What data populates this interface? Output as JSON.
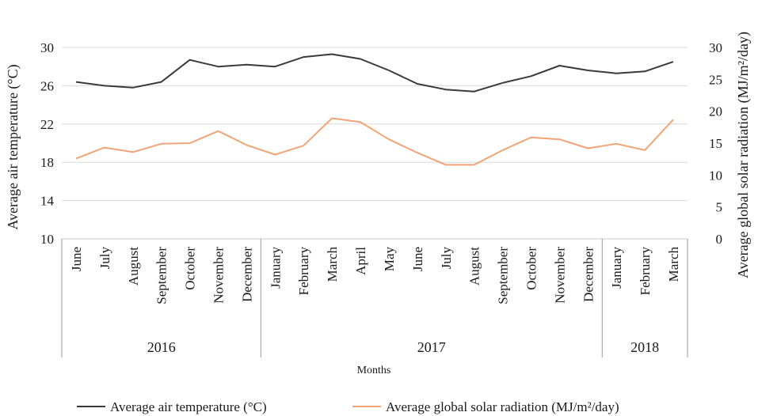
{
  "chart_data": {
    "type": "line",
    "months": [
      "June",
      "July",
      "August",
      "September",
      "October",
      "November",
      "December",
      "January",
      "February",
      "March",
      "April",
      "May",
      "June",
      "July",
      "August",
      "September",
      "October",
      "November",
      "December",
      "January",
      "February",
      "March"
    ],
    "year_groups": [
      {
        "label": "2016",
        "start": 0,
        "end": 6
      },
      {
        "label": "2017",
        "start": 7,
        "end": 18
      },
      {
        "label": "2018",
        "start": 19,
        "end": 21
      }
    ],
    "series": [
      {
        "name": "Average air temperature (°C)",
        "axis": "left",
        "color": "#3a3a3a",
        "values": [
          26.4,
          26.0,
          25.8,
          26.4,
          28.7,
          28.0,
          28.2,
          28.0,
          29.0,
          29.3,
          28.8,
          27.6,
          26.2,
          25.6,
          25.4,
          26.3,
          27.0,
          28.1,
          27.6,
          27.3,
          27.5,
          28.5
        ]
      },
      {
        "name": "Average global solar radiation (MJ/m²/day)",
        "axis": "right",
        "color": "#f2a477",
        "values": [
          12.6,
          14.3,
          13.6,
          14.9,
          15.0,
          16.9,
          14.7,
          13.2,
          14.6,
          18.9,
          18.3,
          15.6,
          13.5,
          11.6,
          11.6,
          13.9,
          15.9,
          15.6,
          14.2,
          14.9,
          13.9,
          18.7
        ]
      }
    ],
    "y_left": {
      "label": "Average air temperature (°C)",
      "min": 10,
      "max": 30,
      "ticks": [
        "10",
        "14",
        "18",
        "22",
        "26",
        "30"
      ]
    },
    "y_right": {
      "label": "Average global solar radiation (MJ/m²/day)",
      "min": 0,
      "max": 30,
      "ticks": [
        "0",
        "5",
        "10",
        "15",
        "20",
        "25",
        "30"
      ]
    },
    "xlabel": "Months",
    "grid": true,
    "legend_position": "bottom"
  }
}
